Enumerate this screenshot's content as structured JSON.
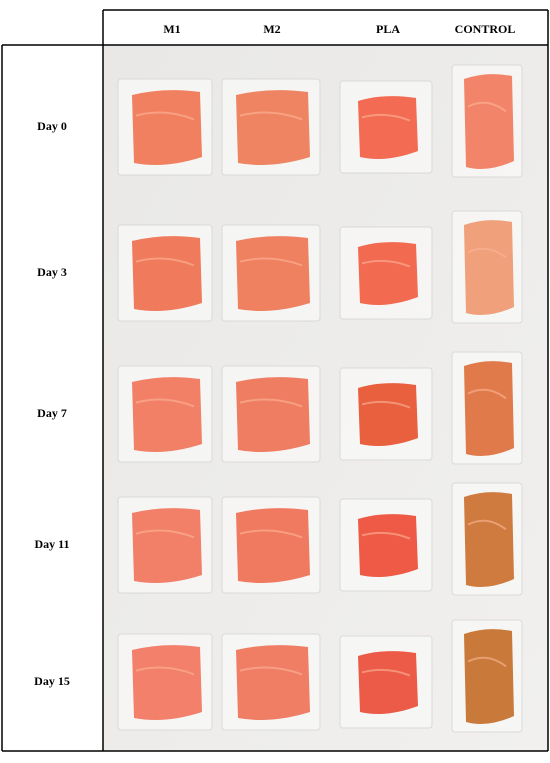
{
  "header": {
    "columns": [
      "M1",
      "M2",
      "PLA",
      "CONTROL"
    ]
  },
  "rows": [
    "Day 0",
    "Day 3",
    "Day 7",
    "Day 11",
    "Day 15"
  ]
}
